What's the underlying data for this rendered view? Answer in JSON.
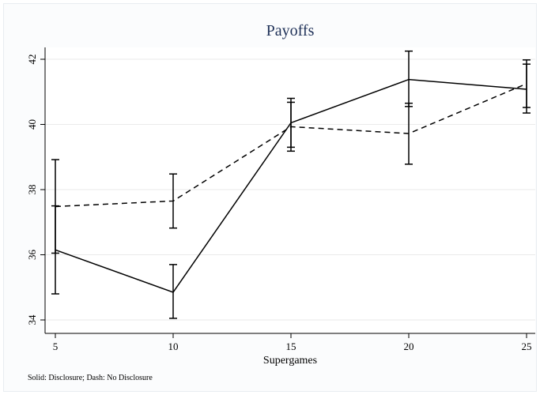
{
  "chart_data": {
    "type": "line",
    "title": "Payoffs",
    "xlabel": "Supergames",
    "ylabel": "",
    "x": [
      5,
      10,
      15,
      20,
      25
    ],
    "xlim": [
      5,
      25
    ],
    "ylim": [
      34,
      42
    ],
    "xticks": [
      "5",
      "10",
      "15",
      "20",
      "25"
    ],
    "yticks": [
      "34",
      "36",
      "38",
      "40",
      "42"
    ],
    "grid": true,
    "note": "Solid: Disclosure; Dash: No Disclosure",
    "series": [
      {
        "style": "solid",
        "values": [
          36.15,
          34.85,
          40.05,
          41.38,
          41.08
        ],
        "ci_low": [
          34.8,
          34.05,
          39.3,
          40.55,
          40.35
        ],
        "ci_high": [
          37.5,
          35.7,
          40.8,
          42.25,
          41.85
        ]
      },
      {
        "style": "dashed",
        "values": [
          37.48,
          37.65,
          39.93,
          39.72,
          41.25
        ],
        "ci_low": [
          36.05,
          36.82,
          39.18,
          38.78,
          40.52
        ],
        "ci_high": [
          38.92,
          38.48,
          40.68,
          40.65,
          41.98
        ]
      }
    ]
  }
}
